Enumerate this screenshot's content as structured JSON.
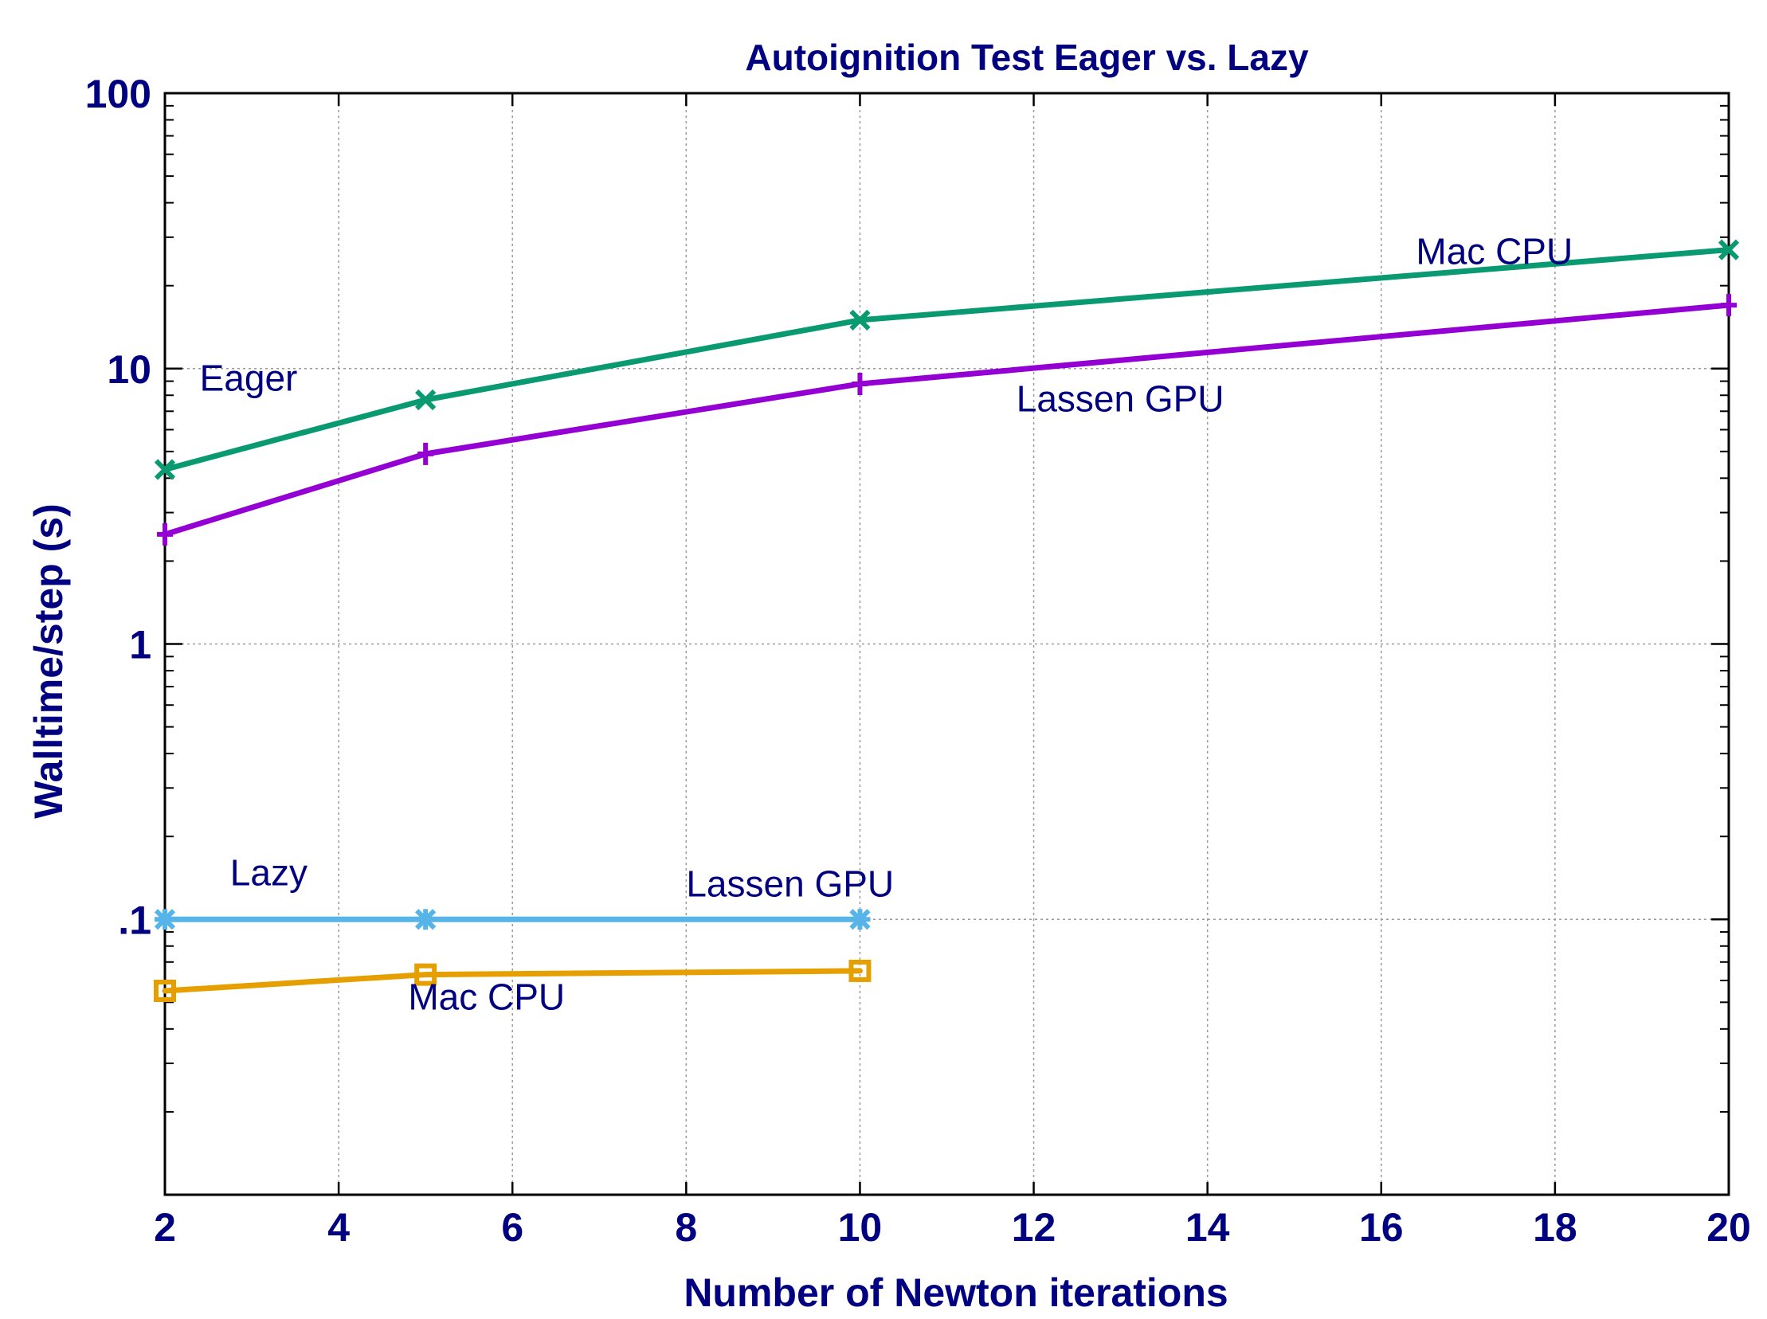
{
  "chart_data": {
    "type": "line",
    "title": "Autoignition Test Eager vs. Lazy",
    "xlabel": "Number of Newton iterations",
    "ylabel": "Walltime/step (s)",
    "xlim": [
      2,
      20
    ],
    "ylim": [
      0.01,
      100
    ],
    "yscale": "log",
    "grid": true,
    "x_ticks": [
      2,
      4,
      6,
      8,
      10,
      12,
      14,
      16,
      18,
      20
    ],
    "x_tick_labels": [
      "2",
      "4",
      "6",
      "8",
      "10",
      "12",
      "14",
      "16",
      "18",
      "20"
    ],
    "y_ticks": [
      0.1,
      1,
      10,
      100
    ],
    "y_tick_labels": [
      ".1",
      "1",
      "10",
      "100"
    ],
    "series": [
      {
        "name": "Eager Mac CPU",
        "color": "#0a9a72",
        "marker": "x",
        "x": [
          2,
          5,
          10,
          20
        ],
        "y": [
          4.3,
          7.7,
          15,
          27
        ]
      },
      {
        "name": "Eager Lassen GPU",
        "color": "#9400d3",
        "marker": "plus",
        "x": [
          2,
          5,
          10,
          20
        ],
        "y": [
          2.5,
          4.9,
          8.8,
          17
        ]
      },
      {
        "name": "Lazy Lassen GPU",
        "color": "#56b4e9",
        "marker": "star",
        "x": [
          2,
          5,
          10
        ],
        "y": [
          0.1,
          0.1,
          0.1
        ]
      },
      {
        "name": "Lazy Mac CPU",
        "color": "#e69f00",
        "marker": "square",
        "x": [
          2,
          5,
          10
        ],
        "y": [
          0.055,
          0.063,
          0.065
        ]
      }
    ],
    "annotations": [
      {
        "text": "Eager",
        "x": 2.4,
        "y": 8.3
      },
      {
        "text": "Mac CPU",
        "x": 16.4,
        "y": 24
      },
      {
        "text": "Lassen GPU",
        "x": 11.8,
        "y": 7.0
      },
      {
        "text": "Lazy",
        "x": 2.75,
        "y": 0.133
      },
      {
        "text": "Lassen GPU",
        "x": 8.0,
        "y": 0.121
      },
      {
        "text": "Mac CPU",
        "x": 4.8,
        "y": 0.047
      }
    ]
  }
}
